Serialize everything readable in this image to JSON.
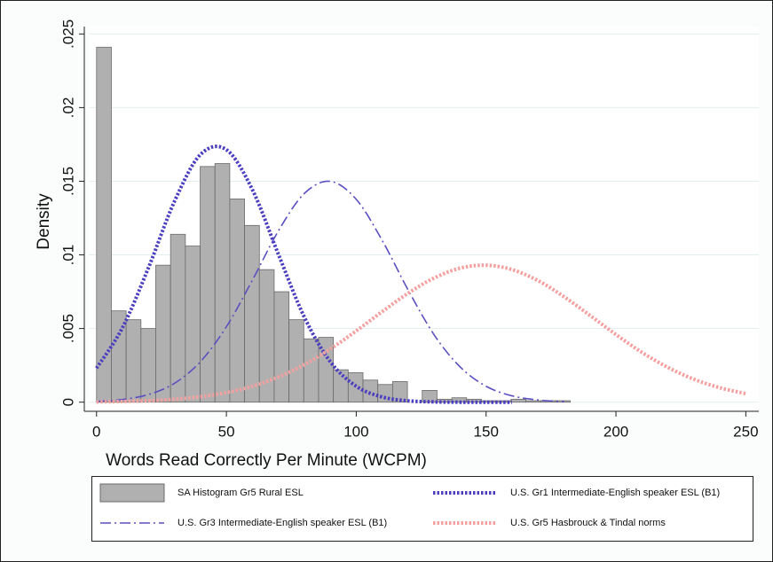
{
  "chart_data": {
    "type": "histogram",
    "xlabel": "Words Read Correctly Per Minute (WCPM)",
    "ylabel": "Density",
    "name": "SA Histogram Gr5 Rural ESL",
    "color": "#b0b0b0",
    "bins": [
      0,
      5.7,
      11.4,
      17.1,
      22.8,
      28.5,
      34.2,
      39.9,
      45.6,
      51.3,
      57,
      62.7,
      68.4,
      74.1,
      79.8,
      85.5,
      91.2,
      96.9,
      102.6,
      108.3,
      114,
      119.7,
      125.4,
      131.1,
      136.8,
      142.5,
      148.2,
      153.9,
      159.6,
      165.3,
      171,
      176.7,
      182.4
    ],
    "values": [
      0.0241,
      0.0062,
      0.0056,
      0.005,
      0.0093,
      0.0114,
      0.0106,
      0.016,
      0.0162,
      0.0138,
      0.012,
      0.009,
      0.0075,
      0.0056,
      0.0043,
      0.0044,
      0.0022,
      0.002,
      0.0015,
      0.0012,
      0.0014,
      0,
      0.0008,
      0.0002,
      0.0003,
      0.0002,
      0.0001,
      0.0001,
      0.0002,
      0.0001,
      0.0001,
      0.0001
    ],
    "series": [
      {
        "name": "U.S. Gr1 Intermediate-English speaker ESL (B1)",
        "color": "#4b3fc0",
        "dash": "dotted",
        "x": [
          0,
          10,
          20,
          30,
          40,
          50,
          60,
          70,
          80,
          90,
          100,
          110,
          120,
          130,
          140,
          150,
          160
        ],
        "values": [
          0.00231,
          0.00506,
          0.00913,
          0.01363,
          0.01681,
          0.01714,
          0.01443,
          0.01005,
          0.00578,
          0.00275,
          0.00108,
          0.00035,
          9e-05,
          2e-05,
          0,
          0,
          0
        ]
      },
      {
        "name": "U.S. Gr3 Intermediate-English speaker ESL (B1)",
        "color": "#5a4fc0",
        "dash": "dash-dot",
        "x": [
          0,
          10,
          20,
          30,
          40,
          50,
          60,
          70,
          80,
          90,
          100,
          110,
          120,
          130,
          140,
          150,
          160,
          170,
          180
        ],
        "values": [
          6e-05,
          0.00018,
          0.00052,
          0.00128,
          0.00275,
          0.00512,
          0.00828,
          0.01162,
          0.01417,
          0.01499,
          0.01377,
          0.01098,
          0.00761,
          0.00457,
          0.00239,
          0.00108,
          0.00043,
          0.00015,
          4e-05
        ]
      },
      {
        "name": "U.S. Gr5 Hasbrouck & Tindal norms",
        "color": "#f4a0a0",
        "dash": "dotted",
        "x": [
          0,
          10,
          20,
          30,
          40,
          50,
          60,
          70,
          80,
          90,
          100,
          110,
          120,
          130,
          140,
          150,
          160,
          170,
          180,
          190,
          200,
          210,
          220,
          230,
          240,
          250
        ],
        "values": [
          2e-05,
          5e-05,
          0.0001,
          0.0002,
          0.00037,
          0.00065,
          0.00108,
          0.00171,
          0.00255,
          0.00361,
          0.00484,
          0.00615,
          0.0074,
          0.00843,
          0.0091,
          0.0093,
          0.009,
          0.00825,
          0.00716,
          0.00589,
          0.00459,
          0.00338,
          0.00236,
          0.00156,
          0.00098,
          0.00058
        ]
      }
    ],
    "xlim": [
      -3,
      255
    ],
    "ylim": [
      -0.0005,
      0.0255
    ],
    "xticks": [
      0,
      50,
      100,
      150,
      200,
      250
    ],
    "yticks": [
      0,
      {
        "value": 0.005,
        "label": ".005"
      },
      {
        "value": 0.01,
        "label": ".01"
      },
      {
        "value": 0.015,
        "label": ".015"
      },
      {
        "value": 0.02,
        "label": ".02"
      },
      {
        "value": 0.025,
        "label": ".025"
      }
    ],
    "grid": true
  }
}
